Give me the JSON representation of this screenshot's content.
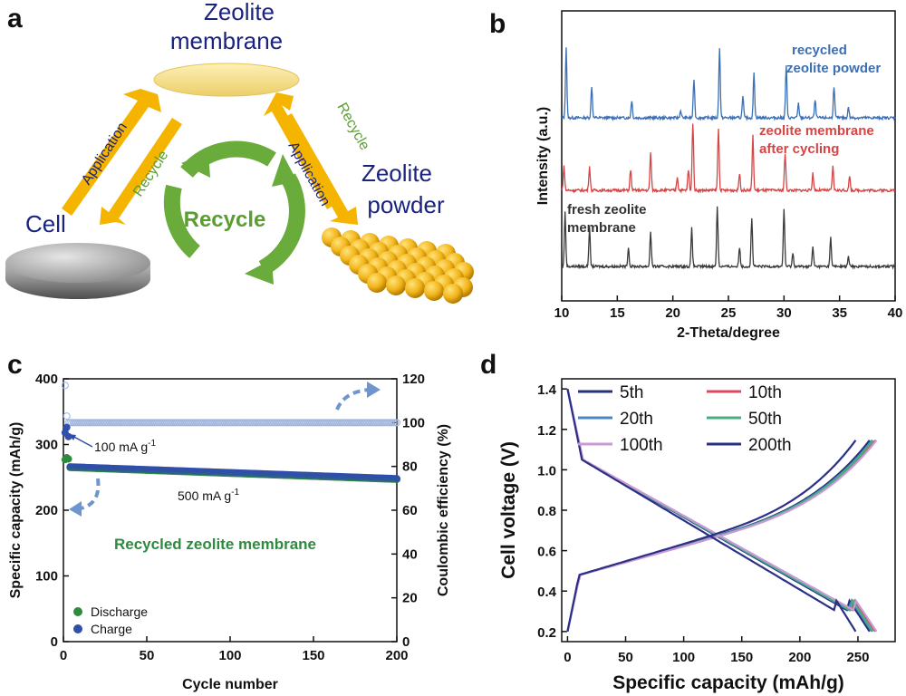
{
  "panel_a": {
    "letter": "a",
    "membrane_label_1": "Zeolite",
    "membrane_label_2": "membrane",
    "cell_label": "Cell",
    "powder_label_1": "Zeolite",
    "powder_label_2": "powder",
    "recycle_center": "Recycle",
    "left_application": "Application",
    "left_recycle": "Recycle",
    "right_application": "Application",
    "right_recycle": "Recycle",
    "colors": {
      "arrow": "#F4B400",
      "text_blue": "#1a237e",
      "text_green": "#5a9e2f",
      "disk": "#f7df86",
      "recycle": "#6aac3b"
    }
  },
  "chart_data": [
    {
      "panel": "b",
      "type": "line",
      "xlabel": "2-Theta/degree",
      "ylabel": "Intensity (a.u.)",
      "xlim": [
        10,
        40
      ],
      "xticks": [
        "10",
        "15",
        "20",
        "25",
        "30",
        "35",
        "40"
      ],
      "series": [
        {
          "name": "recycled zeolite powder",
          "label_1": "recycled",
          "label_2": "zeolite powder",
          "color": "#3b6fb6",
          "peaks": [
            [
              10.4,
              1.0
            ],
            [
              12.7,
              0.45
            ],
            [
              16.3,
              0.25
            ],
            [
              20.7,
              0.1
            ],
            [
              21.9,
              0.55
            ],
            [
              24.2,
              1.0
            ],
            [
              26.3,
              0.3
            ],
            [
              27.3,
              0.65
            ],
            [
              30.2,
              0.75
            ],
            [
              31.3,
              0.2
            ],
            [
              32.8,
              0.25
            ],
            [
              34.5,
              0.45
            ],
            [
              35.8,
              0.15
            ]
          ]
        },
        {
          "name": "zeolite membrane after cycling",
          "label_1": "zeolite membrane",
          "label_2": "after cycling",
          "color": "#d64545",
          "peaks": [
            [
              10.2,
              0.35
            ],
            [
              12.5,
              0.35
            ],
            [
              16.2,
              0.3
            ],
            [
              18.0,
              0.55
            ],
            [
              20.4,
              0.2
            ],
            [
              21.4,
              0.3
            ],
            [
              21.8,
              1.0
            ],
            [
              24.1,
              0.9
            ],
            [
              26.0,
              0.25
            ],
            [
              27.2,
              0.8
            ],
            [
              30.1,
              0.55
            ],
            [
              32.6,
              0.25
            ],
            [
              34.4,
              0.35
            ],
            [
              35.9,
              0.2
            ]
          ]
        },
        {
          "name": "fresh zeolite membrane",
          "label_1": "fresh zeolite",
          "label_2": "membrane",
          "color": "#3a3a3a",
          "peaks": [
            [
              10.3,
              0.85
            ],
            [
              12.5,
              0.6
            ],
            [
              16.0,
              0.3
            ],
            [
              18.0,
              0.55
            ],
            [
              21.7,
              0.6
            ],
            [
              24.0,
              0.95
            ],
            [
              26.0,
              0.3
            ],
            [
              27.1,
              0.75
            ],
            [
              30.0,
              0.9
            ],
            [
              30.8,
              0.2
            ],
            [
              32.6,
              0.3
            ],
            [
              34.2,
              0.45
            ],
            [
              35.8,
              0.15
            ]
          ]
        }
      ]
    },
    {
      "panel": "c",
      "type": "scatter",
      "xlabel": "Cycle number",
      "ylabel": "Specific capacity (mAh/g)",
      "y2label": "Coulombic efficiency (%)",
      "xlim": [
        0,
        200
      ],
      "ylim": [
        0,
        400
      ],
      "y2lim": [
        0,
        120
      ],
      "xticks": [
        "0",
        "50",
        "100",
        "150",
        "200"
      ],
      "yticks": [
        "0",
        "100",
        "200",
        "300",
        "400"
      ],
      "y2ticks": [
        "0",
        "20",
        "40",
        "60",
        "80",
        "100",
        "120"
      ],
      "annotation_100": "100 mA g",
      "annotation_500": "500 mA g",
      "superscript": "-1",
      "sample_label": "Recycled zeolite membrane",
      "legend": [
        {
          "name": "Discharge",
          "color": "#2e8b3e"
        },
        {
          "name": "Charge",
          "color": "#2f4fa8"
        }
      ],
      "series": [
        {
          "name": "Discharge",
          "initial": [
            [
              1,
              277
            ],
            [
              2,
              280
            ],
            [
              3,
              278
            ]
          ],
          "start_value": 265,
          "end_value": 247
        },
        {
          "name": "Charge",
          "initial": [
            [
              1,
              318
            ],
            [
              2,
              326
            ],
            [
              3,
              312
            ]
          ],
          "start_value": 266,
          "end_value": 248
        },
        {
          "name": "Coulombic efficiency",
          "initial": [
            [
              1,
              117
            ],
            [
              2,
              103
            ],
            [
              3,
              100
            ]
          ],
          "value": 100
        }
      ]
    },
    {
      "panel": "d",
      "type": "line",
      "xlabel": "Specific capacity (mAh/g)",
      "ylabel": "Cell voltage (V)",
      "xlim": [
        -5,
        282
      ],
      "ylim": [
        0.15,
        1.45
      ],
      "xticks": [
        "0",
        "50",
        "100",
        "150",
        "200",
        "250"
      ],
      "yticks": [
        "0.2",
        "0.4",
        "0.6",
        "0.8",
        "1.0",
        "1.2",
        "1.4"
      ],
      "series": [
        {
          "name": "5th",
          "color": "#26327a",
          "capacity": 260
        },
        {
          "name": "10th",
          "color": "#e0475a",
          "capacity": 265
        },
        {
          "name": "20th",
          "color": "#4a86c8",
          "capacity": 262
        },
        {
          "name": "50th",
          "color": "#45b07d",
          "capacity": 263
        },
        {
          "name": "100th",
          "color": "#c99ad6",
          "capacity": 266
        },
        {
          "name": "200th",
          "color": "#2b2f86",
          "capacity": 248
        }
      ]
    }
  ],
  "panel_letters": {
    "b": "b",
    "c": "c",
    "d": "d"
  }
}
